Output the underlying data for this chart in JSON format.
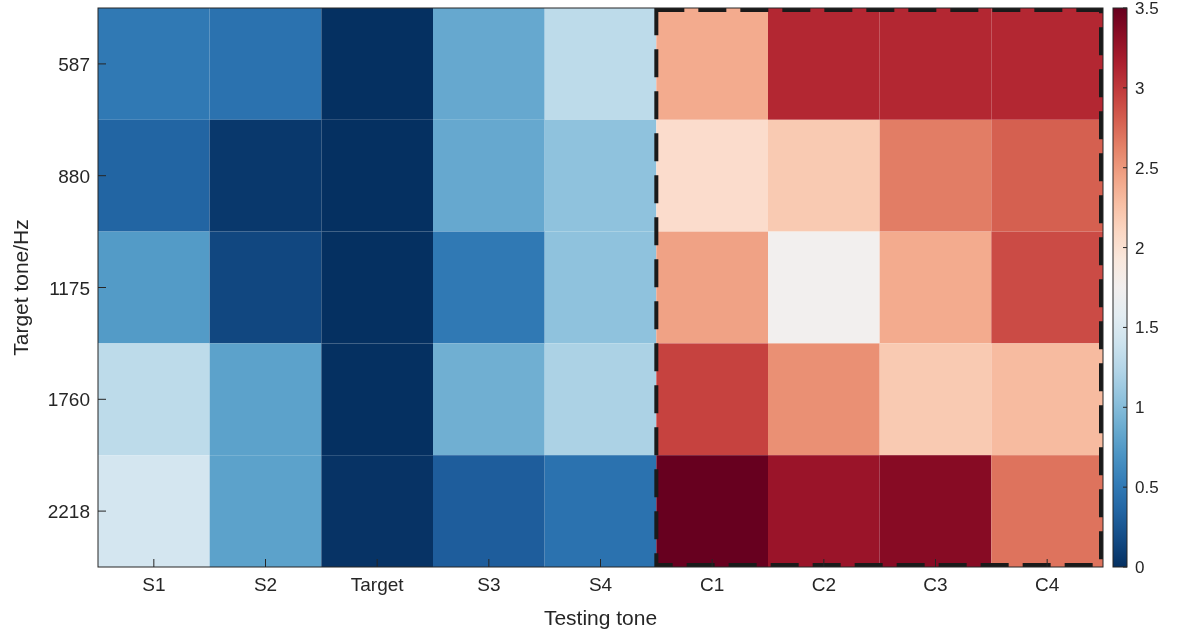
{
  "chart_data": {
    "type": "heatmap",
    "xlabel": "Testing tone",
    "ylabel": "Target tone/Hz",
    "categories": [
      "S1",
      "S2",
      "Target",
      "S3",
      "S4",
      "C1",
      "C2",
      "C3",
      "C4"
    ],
    "y_categories": [
      "587",
      "880",
      "1175",
      "1760",
      "2218"
    ],
    "cells": [
      [
        0.5,
        0.45,
        0,
        0.85,
        1.3,
        2.4,
        3.1,
        3.1,
        3.1
      ],
      [
        0.35,
        0.05,
        0,
        0.85,
        1.05,
        2.05,
        2.2,
        2.65,
        2.8
      ],
      [
        0.75,
        0.15,
        0,
        0.5,
        1.05,
        2.45,
        1.75,
        2.4,
        2.9
      ],
      [
        1.3,
        0.8,
        0,
        0.9,
        1.2,
        2.95,
        2.55,
        2.2,
        2.3
      ],
      [
        1.45,
        0.8,
        0.02,
        0.3,
        0.45,
        3.5,
        3.25,
        3.35,
        2.7
      ]
    ],
    "clim": [
      0,
      3.5
    ],
    "cticks": [
      0,
      0.5,
      1,
      1.5,
      2,
      2.5,
      3,
      3.5
    ]
  }
}
